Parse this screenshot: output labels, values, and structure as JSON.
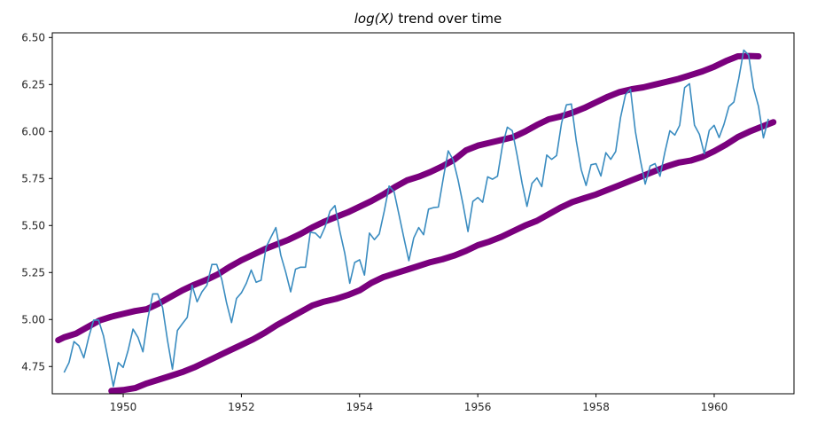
{
  "chart_data": {
    "type": "line",
    "title_math": "log(X)",
    "title_rest": " trend over time",
    "xlim": [
      1948.8,
      1961.35
    ],
    "ylim": [
      4.605,
      6.525
    ],
    "xticks": [
      1950,
      1952,
      1954,
      1956,
      1958,
      1960
    ],
    "xtick_labels": [
      "1950",
      "1952",
      "1954",
      "1956",
      "1958",
      "1960"
    ],
    "yticks": [
      4.75,
      5.0,
      5.25,
      5.5,
      5.75,
      6.0,
      6.25,
      6.5
    ],
    "ytick_labels": [
      "4.75",
      "5.00",
      "5.25",
      "5.50",
      "5.75",
      "6.00",
      "6.25",
      "6.50"
    ],
    "colors": {
      "series": "#3a8cc0",
      "envelope": "#7a007d",
      "axes": "#000000"
    },
    "series": [
      {
        "values_start": 1949.0,
        "values_step": 0.08333,
        "values": [
          4.718,
          4.771,
          4.883,
          4.86,
          4.796,
          4.905,
          4.997,
          4.997,
          4.913,
          4.779,
          4.644,
          4.771,
          4.745,
          4.836,
          4.949,
          4.905,
          4.828,
          5.004,
          5.136,
          5.136,
          5.063,
          4.89,
          4.736,
          4.942,
          4.977,
          5.011,
          5.182,
          5.094,
          5.147,
          5.182,
          5.293,
          5.293,
          5.215,
          5.088,
          4.984,
          5.112,
          5.142,
          5.193,
          5.263,
          5.198,
          5.209,
          5.384,
          5.438,
          5.489,
          5.342,
          5.252,
          5.147,
          5.268,
          5.278,
          5.278,
          5.464,
          5.46,
          5.434,
          5.493,
          5.576,
          5.606,
          5.468,
          5.352,
          5.193,
          5.303,
          5.318,
          5.236,
          5.46,
          5.425,
          5.455,
          5.576,
          5.71,
          5.68,
          5.557,
          5.434,
          5.313,
          5.434,
          5.489,
          5.451,
          5.587,
          5.595,
          5.598,
          5.753,
          5.897,
          5.849,
          5.743,
          5.613,
          5.468,
          5.628,
          5.649,
          5.624,
          5.759,
          5.746,
          5.762,
          5.924,
          6.023,
          6.004,
          5.872,
          5.724,
          5.602,
          5.724,
          5.753,
          5.707,
          5.875,
          5.852,
          5.872,
          6.045,
          6.142,
          6.146,
          5.951,
          5.797,
          5.713,
          5.823,
          5.829,
          5.763,
          5.887,
          5.852,
          5.894,
          6.075,
          6.196,
          6.225,
          6.001,
          5.849,
          5.72,
          5.817,
          5.829,
          5.762,
          5.892,
          6.004,
          5.981,
          6.033,
          6.234,
          6.254,
          6.034,
          5.985,
          5.882,
          6.006,
          6.033,
          5.968,
          6.038,
          6.133,
          6.157,
          6.282,
          6.433,
          6.407,
          6.23,
          6.133,
          5.966,
          6.068
        ]
      }
    ],
    "envelopes": [
      {
        "name": "upper",
        "x": [
          1948.9,
          1949.0,
          1949.2,
          1949.4,
          1949.6,
          1949.8,
          1950.0,
          1950.2,
          1950.4,
          1950.6,
          1950.8,
          1951.0,
          1951.2,
          1951.4,
          1951.6,
          1951.8,
          1952.0,
          1952.2,
          1952.4,
          1952.6,
          1952.8,
          1953.0,
          1953.2,
          1953.4,
          1953.6,
          1953.8,
          1954.0,
          1954.2,
          1954.4,
          1954.6,
          1954.8,
          1955.0,
          1955.2,
          1955.4,
          1955.6,
          1955.8,
          1956.0,
          1956.2,
          1956.4,
          1956.6,
          1956.8,
          1957.0,
          1957.2,
          1957.4,
          1957.6,
          1957.8,
          1958.0,
          1958.2,
          1958.4,
          1958.6,
          1958.8,
          1959.0,
          1959.2,
          1959.4,
          1959.6,
          1959.8,
          1960.0,
          1960.2,
          1960.4,
          1960.6,
          1960.75
        ],
        "y": [
          4.89,
          4.905,
          4.925,
          4.96,
          4.995,
          5.015,
          5.03,
          5.045,
          5.055,
          5.085,
          5.12,
          5.155,
          5.185,
          5.21,
          5.24,
          5.28,
          5.315,
          5.345,
          5.375,
          5.4,
          5.425,
          5.455,
          5.49,
          5.52,
          5.545,
          5.57,
          5.6,
          5.63,
          5.665,
          5.705,
          5.74,
          5.76,
          5.785,
          5.815,
          5.85,
          5.9,
          5.925,
          5.94,
          5.955,
          5.97,
          6.0,
          6.035,
          6.065,
          6.08,
          6.1,
          6.125,
          6.155,
          6.185,
          6.21,
          6.225,
          6.235,
          6.25,
          6.265,
          6.28,
          6.3,
          6.32,
          6.345,
          6.375,
          6.4,
          6.402,
          6.4
        ]
      },
      {
        "name": "lower",
        "x": [
          1949.8,
          1950.0,
          1950.2,
          1950.4,
          1950.6,
          1950.8,
          1951.0,
          1951.2,
          1951.4,
          1951.6,
          1951.8,
          1952.0,
          1952.2,
          1952.4,
          1952.6,
          1952.8,
          1953.0,
          1953.2,
          1953.4,
          1953.6,
          1953.8,
          1954.0,
          1954.2,
          1954.4,
          1954.6,
          1954.8,
          1955.0,
          1955.2,
          1955.4,
          1955.6,
          1955.8,
          1956.0,
          1956.2,
          1956.4,
          1956.6,
          1956.8,
          1957.0,
          1957.2,
          1957.4,
          1957.6,
          1957.8,
          1958.0,
          1958.2,
          1958.4,
          1958.6,
          1958.8,
          1959.0,
          1959.2,
          1959.4,
          1959.6,
          1959.8,
          1960.0,
          1960.2,
          1960.4,
          1960.6,
          1960.8,
          1961.0
        ],
        "y": [
          4.62,
          4.625,
          4.635,
          4.66,
          4.68,
          4.7,
          4.72,
          4.745,
          4.775,
          4.805,
          4.835,
          4.865,
          4.895,
          4.93,
          4.97,
          5.005,
          5.04,
          5.075,
          5.095,
          5.11,
          5.13,
          5.155,
          5.195,
          5.225,
          5.245,
          5.265,
          5.285,
          5.305,
          5.32,
          5.34,
          5.365,
          5.395,
          5.415,
          5.44,
          5.47,
          5.5,
          5.525,
          5.56,
          5.595,
          5.625,
          5.645,
          5.665,
          5.69,
          5.715,
          5.74,
          5.765,
          5.79,
          5.815,
          5.835,
          5.845,
          5.865,
          5.895,
          5.93,
          5.97,
          6.0,
          6.025,
          6.05
        ]
      }
    ]
  }
}
